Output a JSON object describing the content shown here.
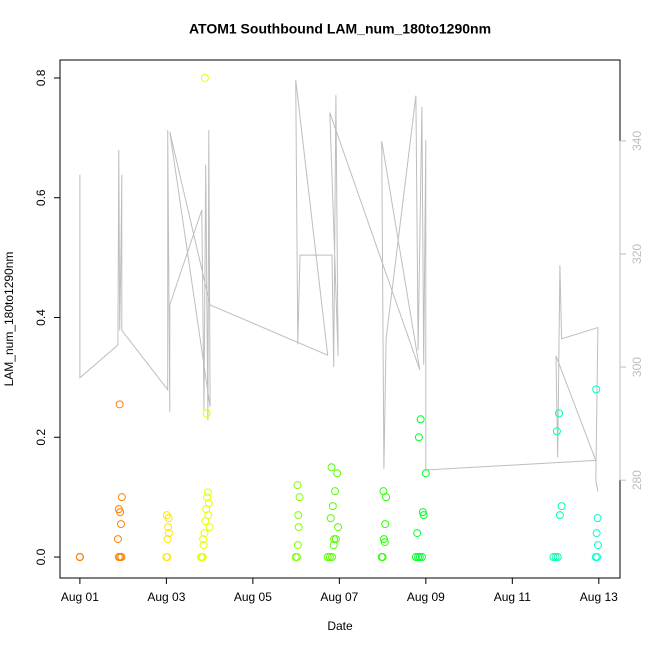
{
  "chart_data": {
    "type": "scatter",
    "title": "ATOM1 Southbound LAM_num_180to1290nm",
    "x_label": "Date",
    "y_label": "LAM_num_180to1290nm",
    "xlim": [
      -0.46,
      12.49
    ],
    "ylim": [
      -0.035,
      0.83
    ],
    "y2lim": [
      262.7,
      354.3
    ],
    "xticks": [
      {
        "value": 0,
        "label": "Aug 01"
      },
      {
        "value": 2,
        "label": "Aug 03"
      },
      {
        "value": 4,
        "label": "Aug 05"
      },
      {
        "value": 6,
        "label": "Aug 07"
      },
      {
        "value": 8,
        "label": "Aug 09"
      },
      {
        "value": 10,
        "label": "Aug 11"
      },
      {
        "value": 12,
        "label": "Aug 13"
      }
    ],
    "yticks": [
      {
        "value": 0,
        "label": "0.0"
      },
      0.2,
      0.4,
      0.6,
      0.8
    ],
    "y2ticks": [
      280,
      300,
      320,
      340
    ],
    "y2_color": "#bebebe",
    "series": [
      {
        "color": "#ff8000",
        "x": [
          0,
          0,
          0,
          0.88,
          0.9,
          0.92,
          0.93,
          0.95,
          0.97,
          0.9,
          0.93,
          0.96
        ],
        "values": [
          0,
          0,
          0,
          0.03,
          0.08,
          0.255,
          0.075,
          0.055,
          0.1,
          0,
          0,
          0
        ]
      },
      {
        "color": "#ffe600",
        "x": [
          2.0,
          2.02,
          2.03,
          2.04,
          2.05,
          2.06,
          2.01
        ],
        "values": [
          0,
          0,
          0.03,
          0.05,
          0.065,
          0.04,
          0.07
        ]
      },
      {
        "color": "#e6ff00",
        "x": [
          2.8,
          2.82,
          2.84,
          2.86,
          2.88,
          2.9,
          2.92,
          2.94,
          2.96,
          2.98,
          3.0,
          2.85,
          2.89,
          2.93,
          2.97
        ],
        "values": [
          0,
          0,
          0,
          0.02,
          0.04,
          0.06,
          0.08,
          0.1,
          0.108,
          0.09,
          0.05,
          0.03,
          0.8,
          0.24,
          0.07
        ]
      },
      {
        "color": "#80ff00",
        "x": [
          4.99,
          5.02,
          5.04,
          5.06,
          5.08,
          5.03,
          5.05
        ],
        "values": [
          0,
          0,
          0.02,
          0.05,
          0.1,
          0.12,
          0.07
        ]
      },
      {
        "color": "#55ff00",
        "x": [
          5.73,
          5.78,
          5.83,
          5.87,
          5.92,
          5.97,
          5.8,
          5.85,
          5.9,
          5.95,
          5.82,
          5.88
        ],
        "values": [
          0,
          0,
          0,
          0.02,
          0.03,
          0.05,
          0.065,
          0.085,
          0.11,
          0.14,
          0.15,
          0.03
        ]
      },
      {
        "color": "#2bff00",
        "x": [
          6.98,
          7.0,
          7.03,
          7.06,
          7.08,
          7.02,
          7.05
        ],
        "values": [
          0,
          0,
          0.03,
          0.055,
          0.1,
          0.11,
          0.025
        ]
      },
      {
        "color": "#00ff2a",
        "x": [
          7.77,
          7.82,
          7.86,
          7.91,
          7.95,
          8.0,
          7.84,
          7.88,
          7.93,
          7.8
        ],
        "values": [
          0,
          0,
          0,
          0,
          0.07,
          0.14,
          0.2,
          0.23,
          0.075,
          0.04
        ]
      },
      {
        "color": "#00ffaa",
        "x": [
          10.95,
          11.0,
          11.05,
          11.1,
          11.14,
          11.03,
          11.08
        ],
        "values": [
          0,
          0,
          0,
          0.07,
          0.085,
          0.21,
          0.24
        ]
      },
      {
        "color": "#00ffcc",
        "x": [
          11.93,
          11.96,
          11.98,
          11.95,
          11.97,
          11.94
        ],
        "values": [
          0,
          0,
          0.02,
          0.04,
          0.065,
          0.28
        ]
      },
      {
        "color": "#bebebe",
        "axis": "y2",
        "line": true,
        "x": [
          0,
          0,
          0,
          0.88,
          0.9,
          0.92,
          0.95,
          0.97,
          0.97,
          2.03,
          2.03,
          2.08,
          2.08,
          2.82,
          2.87,
          2.91,
          2.96,
          2.98,
          3.01,
          2.08,
          3.01,
          5.73,
          4.99,
          5.04,
          5.09,
          5.83,
          5.87,
          5.92,
          5.97,
          5.78,
          7.86,
          6.98,
          7.03,
          7.08,
          7.77,
          7.82,
          7.91,
          7.95,
          8.0,
          8.0,
          11.93,
          11.01,
          11.05,
          11.1,
          11.14,
          11.98,
          11.93,
          11.98
        ],
        "values": [
          321.6,
          334,
          298.1,
          303.9,
          338.4,
          306.5,
          320.7,
          334,
          306.5,
          296,
          341.9,
          292,
          311,
          327.8,
          292.4,
          335.8,
          290.6,
          341.9,
          293,
          341.6,
          311,
          302.1,
          350.8,
          304,
          319.8,
          319.8,
          300,
          348.1,
          302,
          345,
          299.5,
          340,
          282,
          305,
          348,
          303,
          346,
          300.4,
          340.2,
          281.8,
          283.5,
          302,
          284,
          318,
          305,
          307,
          280,
          278
        ]
      }
    ]
  }
}
